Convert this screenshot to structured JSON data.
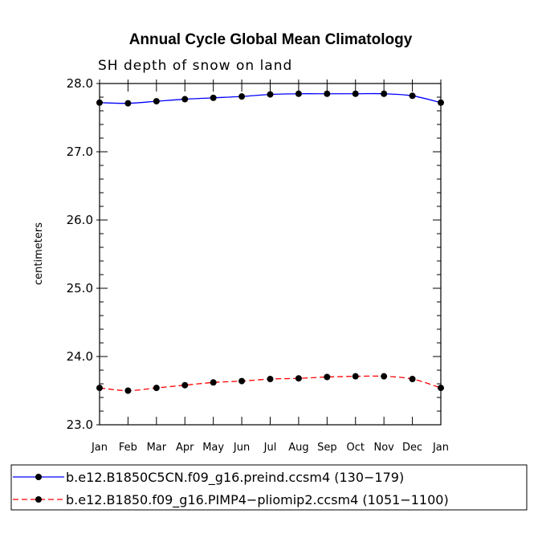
{
  "chart_data": {
    "type": "line",
    "title": "Annual Cycle Global Mean Climatology",
    "subtitle": "SH depth of snow on land",
    "xlabel": "",
    "ylabel": "centimeters",
    "ylim": [
      23.0,
      28.0
    ],
    "yticks": [
      "23.0",
      "24.0",
      "25.0",
      "26.0",
      "27.0",
      "28.0"
    ],
    "categories": [
      "Jan",
      "Feb",
      "Mar",
      "Apr",
      "May",
      "Jun",
      "Jul",
      "Aug",
      "Sep",
      "Oct",
      "Nov",
      "Dec",
      "Jan"
    ],
    "series": [
      {
        "name": "b.e12.B1850C5CN.f09_g16.preind.ccsm4 (130−179)",
        "color": "#0000ff",
        "dash": "solid",
        "values": [
          27.72,
          27.71,
          27.74,
          27.77,
          27.79,
          27.81,
          27.84,
          27.85,
          27.85,
          27.85,
          27.85,
          27.82,
          27.72
        ]
      },
      {
        "name": "b.e12.B1850.f09_g16.PIMP4−pliomip2.ccsm4 (1051−1100)",
        "color": "#ff0000",
        "dash": "dashed",
        "values": [
          23.54,
          23.5,
          23.54,
          23.58,
          23.62,
          23.64,
          23.67,
          23.68,
          23.7,
          23.71,
          23.71,
          23.67,
          23.54
        ]
      }
    ]
  }
}
